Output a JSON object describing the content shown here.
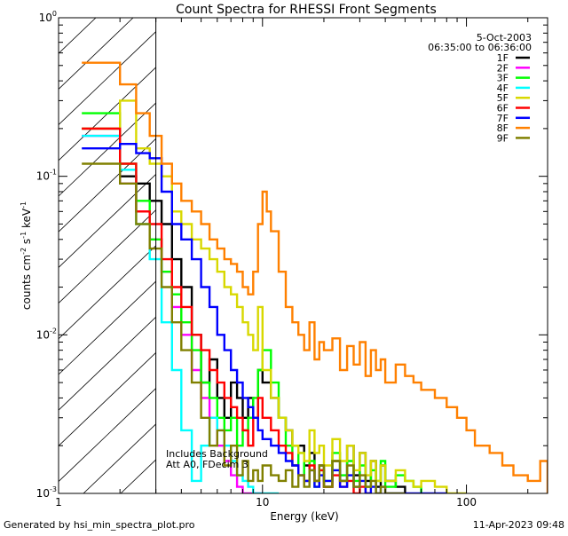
{
  "chart_data": {
    "type": "line",
    "title": "Count Spectra for RHESSI Front Segments",
    "xlabel": "Energy (keV)",
    "ylabel": "counts cm-2 s-1 keV-1",
    "xscale": "log",
    "yscale": "log",
    "xlim": [
      1,
      250
    ],
    "ylim": [
      0.001,
      1
    ],
    "x_tick_labels": [
      {
        "value": 1,
        "label": "1"
      },
      {
        "value": 10,
        "label": "10"
      },
      {
        "value": 100,
        "label": "100"
      }
    ],
    "y_tick_labels": [
      {
        "value": 1,
        "base": "10",
        "exp": "0"
      },
      {
        "value": 0.1,
        "base": "10",
        "exp": "-1"
      },
      {
        "value": 0.01,
        "base": "10",
        "exp": "-2"
      },
      {
        "value": 0.001,
        "base": "10",
        "exp": "-3"
      }
    ],
    "date": "5-Oct-2003",
    "time_range": "06:35:00 to 06:36:00",
    "attenuator_cutoff_kev": 3,
    "annotations": [
      "Includes Background",
      "Att A0, FDecim 3"
    ],
    "series": [
      {
        "name": "1F",
        "color": "#000000",
        "start": 0.2,
        "energies": [
          1.6,
          2,
          2.4,
          2.8,
          3.2,
          3.6,
          4,
          4.5,
          5,
          5.5,
          6,
          6.5,
          7,
          7.5,
          8,
          8.5,
          9,
          9.5,
          10,
          11,
          12,
          13,
          14,
          15,
          16,
          17,
          18,
          19,
          20,
          22,
          24,
          26,
          28,
          30,
          32,
          34,
          36,
          38,
          40,
          45,
          50
        ],
        "values": [
          0.2,
          0.1,
          0.09,
          0.07,
          0.05,
          0.03,
          0.02,
          0.01,
          0.005,
          0.007,
          0.004,
          0.003,
          0.005,
          0.004,
          0.003,
          0.004,
          0.003,
          0.006,
          0.005,
          0.004,
          0.003,
          0.0025,
          0.002,
          0.002,
          0.0015,
          0.0018,
          0.0012,
          0.0015,
          0.0011,
          0.0016,
          0.0012,
          0.002,
          0.0013,
          0.0018,
          0.0012,
          0.0016,
          0.0011,
          0.0015,
          0.0012,
          0.0011,
          0.001
        ]
      },
      {
        "name": "2F",
        "color": "#ff00ff",
        "start": 0.18,
        "energies": [
          1.6,
          2,
          2.4,
          2.8,
          3.2,
          3.6,
          4,
          4.5,
          5,
          5.5,
          6,
          6.5,
          7,
          7.5,
          8,
          8.5,
          9,
          9.5,
          10
        ],
        "values": [
          0.18,
          0.09,
          0.06,
          0.04,
          0.025,
          0.015,
          0.01,
          0.006,
          0.004,
          0.003,
          0.002,
          0.0016,
          0.0013,
          0.0011,
          0.001,
          0.001,
          0.001,
          0.001,
          0.001
        ]
      },
      {
        "name": "3F",
        "color": "#00ff00",
        "start": 0.25,
        "energies": [
          1.6,
          2,
          2.4,
          2.8,
          3.2,
          3.6,
          4,
          4.5,
          5,
          5.5,
          6,
          6.5,
          7,
          7.5,
          8,
          8.5,
          9,
          9.5,
          10,
          11,
          12,
          13,
          14,
          15,
          16,
          17,
          18,
          19,
          20,
          22,
          24,
          26,
          28,
          30,
          32,
          34,
          36,
          38,
          40,
          45,
          50,
          55,
          60
        ],
        "values": [
          0.25,
          0.12,
          0.07,
          0.04,
          0.025,
          0.018,
          0.012,
          0.008,
          0.005,
          0.004,
          0.003,
          0.0025,
          0.003,
          0.002,
          0.0025,
          0.003,
          0.004,
          0.006,
          0.008,
          0.005,
          0.003,
          0.002,
          0.0015,
          0.0018,
          0.0012,
          0.0016,
          0.0011,
          0.0014,
          0.0012,
          0.0018,
          0.0013,
          0.0016,
          0.0012,
          0.0015,
          0.0011,
          0.0014,
          0.0012,
          0.0016,
          0.0011,
          0.0013,
          0.0012,
          0.0011,
          0.001
        ]
      },
      {
        "name": "4F",
        "color": "#00ffff",
        "start": 0.18,
        "energies": [
          1.6,
          2,
          2.4,
          2.8,
          3.2,
          3.6,
          4,
          4.5,
          5,
          5.5,
          6,
          6.5,
          7,
          7.5,
          8,
          8.5,
          9,
          9.5,
          10,
          11,
          12
        ],
        "values": [
          0.18,
          0.11,
          0.05,
          0.03,
          0.012,
          0.006,
          0.0025,
          0.0012,
          0.002,
          0.003,
          0.0025,
          0.002,
          0.0016,
          0.0013,
          0.0012,
          0.0011,
          0.001,
          0.001,
          0.001,
          0.001,
          0.001
        ]
      },
      {
        "name": "5F",
        "color": "#d8d800",
        "start": 0.2,
        "energies": [
          1.6,
          2,
          2.4,
          2.8,
          3.2,
          3.6,
          4,
          4.5,
          5,
          5.5,
          6,
          6.5,
          7,
          7.5,
          8,
          8.5,
          9,
          9.5,
          10,
          11,
          12,
          13,
          14,
          15,
          16,
          17,
          18,
          19,
          20,
          22,
          24,
          26,
          28,
          30,
          32,
          34,
          36,
          38,
          40,
          45,
          50,
          55,
          60,
          70,
          80,
          90,
          100
        ],
        "values": [
          0.2,
          0.3,
          0.15,
          0.12,
          0.1,
          0.06,
          0.05,
          0.04,
          0.035,
          0.03,
          0.025,
          0.02,
          0.018,
          0.015,
          0.012,
          0.01,
          0.008,
          0.015,
          0.006,
          0.004,
          0.003,
          0.0025,
          0.002,
          0.0018,
          0.0016,
          0.0025,
          0.0018,
          0.002,
          0.0015,
          0.0022,
          0.0016,
          0.002,
          0.0014,
          0.0018,
          0.0013,
          0.0016,
          0.0012,
          0.0015,
          0.0012,
          0.0014,
          0.0012,
          0.0011,
          0.0012,
          0.0011,
          0.001,
          0.001,
          0.001
        ]
      },
      {
        "name": "6F",
        "color": "#ff0000",
        "start": 0.2,
        "energies": [
          1.6,
          2,
          2.4,
          2.8,
          3.2,
          3.6,
          4,
          4.5,
          5,
          5.5,
          6,
          6.5,
          7,
          7.5,
          8,
          8.5,
          9,
          9.5,
          10,
          11,
          12,
          13,
          14,
          15,
          16,
          17,
          18,
          19,
          20,
          22,
          24,
          26,
          28,
          30,
          32,
          34
        ],
        "values": [
          0.2,
          0.12,
          0.06,
          0.05,
          0.03,
          0.02,
          0.015,
          0.01,
          0.008,
          0.006,
          0.005,
          0.004,
          0.0035,
          0.003,
          0.0025,
          0.002,
          0.003,
          0.004,
          0.003,
          0.0025,
          0.002,
          0.0018,
          0.0015,
          0.0013,
          0.0012,
          0.0015,
          0.0012,
          0.0014,
          0.0011,
          0.0013,
          0.0011,
          0.0012,
          0.001,
          0.0011,
          0.001,
          0.001
        ]
      },
      {
        "name": "7F",
        "color": "#0000ff",
        "start": 0.15,
        "energies": [
          1.6,
          2,
          2.4,
          2.8,
          3.2,
          3.6,
          4,
          4.5,
          5,
          5.5,
          6,
          6.5,
          7,
          7.5,
          8,
          8.5,
          9,
          9.5,
          10,
          11,
          12,
          13,
          14,
          15,
          16,
          17,
          18,
          19,
          20,
          22,
          24,
          26,
          28,
          30,
          32,
          34,
          36,
          38,
          40,
          45,
          50,
          55,
          60,
          70,
          80
        ],
        "values": [
          0.15,
          0.16,
          0.14,
          0.13,
          0.08,
          0.05,
          0.04,
          0.03,
          0.02,
          0.015,
          0.01,
          0.008,
          0.006,
          0.005,
          0.004,
          0.0035,
          0.003,
          0.0025,
          0.0022,
          0.002,
          0.0018,
          0.0016,
          0.0015,
          0.0013,
          0.0012,
          0.0014,
          0.0011,
          0.0013,
          0.0012,
          0.0014,
          0.0011,
          0.0013,
          0.0011,
          0.0012,
          0.001,
          0.0011,
          0.001,
          0.0011,
          0.001,
          0.001,
          0.001,
          0.001,
          0.001,
          0.001,
          0.001
        ]
      },
      {
        "name": "8F",
        "color": "#ff8000",
        "start": 0.52,
        "energies": [
          1.6,
          2,
          2.4,
          2.8,
          3.2,
          3.6,
          4,
          4.5,
          5,
          5.5,
          6,
          6.5,
          7,
          7.5,
          8,
          8.5,
          9,
          9.5,
          10,
          10.5,
          11,
          12,
          13,
          14,
          15,
          16,
          17,
          18,
          19,
          20,
          22,
          24,
          26,
          28,
          30,
          32,
          34,
          36,
          38,
          40,
          45,
          50,
          55,
          60,
          70,
          80,
          90,
          100,
          110,
          130,
          150,
          170,
          200,
          230,
          250
        ],
        "values": [
          0.52,
          0.38,
          0.25,
          0.18,
          0.12,
          0.09,
          0.07,
          0.06,
          0.05,
          0.04,
          0.035,
          0.03,
          0.028,
          0.025,
          0.02,
          0.018,
          0.025,
          0.05,
          0.08,
          0.06,
          0.045,
          0.025,
          0.015,
          0.012,
          0.01,
          0.008,
          0.012,
          0.007,
          0.009,
          0.008,
          0.0095,
          0.006,
          0.0085,
          0.0065,
          0.009,
          0.0055,
          0.008,
          0.006,
          0.007,
          0.005,
          0.0065,
          0.0055,
          0.005,
          0.0045,
          0.004,
          0.0035,
          0.003,
          0.0025,
          0.002,
          0.0018,
          0.0015,
          0.0013,
          0.0012,
          0.0016,
          0.001
        ]
      },
      {
        "name": "9F",
        "color": "#808000",
        "start": 0.12,
        "energies": [
          1.6,
          2,
          2.4,
          2.8,
          3.2,
          3.6,
          4,
          4.5,
          5,
          5.5,
          6,
          6.5,
          7,
          7.5,
          8,
          8.5,
          9,
          9.5,
          10,
          11,
          12,
          13,
          14,
          15,
          16,
          17,
          18,
          19,
          20,
          22,
          24,
          26,
          28,
          30,
          32,
          34,
          36,
          38,
          40,
          45,
          50
        ],
        "values": [
          0.12,
          0.09,
          0.05,
          0.035,
          0.02,
          0.012,
          0.008,
          0.005,
          0.003,
          0.002,
          0.0025,
          0.0015,
          0.002,
          0.0013,
          0.0016,
          0.0012,
          0.0014,
          0.0012,
          0.0015,
          0.0013,
          0.0012,
          0.0014,
          0.0011,
          0.0013,
          0.0011,
          0.0014,
          0.0012,
          0.0015,
          0.0011,
          0.0016,
          0.0012,
          0.0015,
          0.0011,
          0.0013,
          0.0011,
          0.0012,
          0.001,
          0.0011,
          0.001,
          0.001,
          0.001
        ]
      }
    ]
  },
  "footer": {
    "generated_by": "Generated by hsi_min_spectra_plot.pro",
    "timestamp": "11-Apr-2023 09:48"
  }
}
